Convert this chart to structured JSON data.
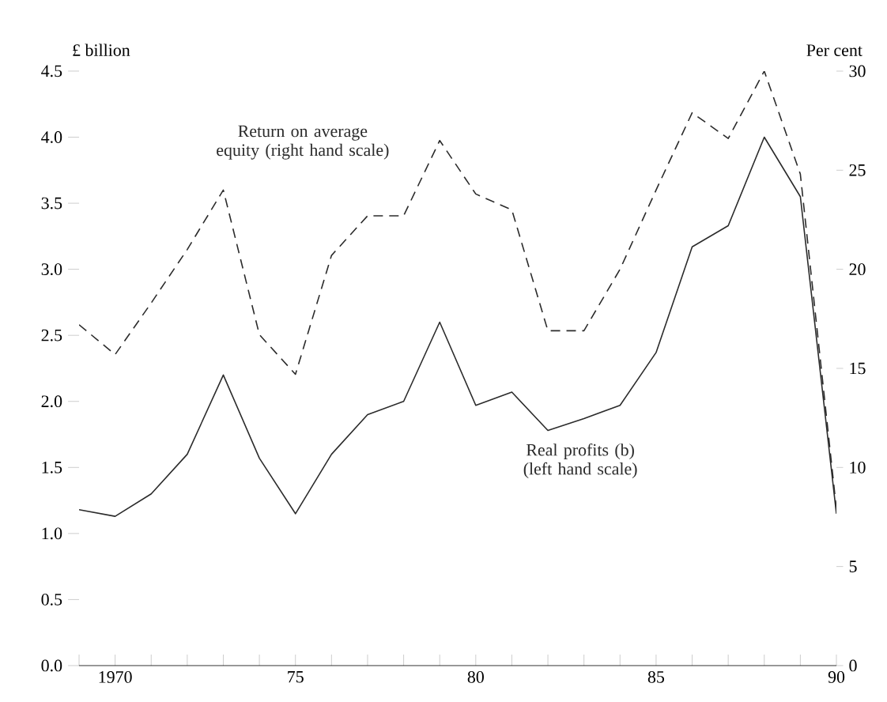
{
  "chart_data": {
    "type": "line",
    "xlabel": null,
    "ylabel": "£ billion",
    "y2label": "Per cent",
    "x": [
      1969,
      1970,
      1971,
      1972,
      1973,
      1974,
      1975,
      1976,
      1977,
      1978,
      1979,
      1980,
      1981,
      1982,
      1983,
      1984,
      1985,
      1986,
      1987,
      1988,
      1989,
      1990
    ],
    "series": [
      {
        "name": "Real profits (b) (left hand scale)",
        "color": "#2b2b2b",
        "line_style": "solid",
        "values": [
          1.18,
          1.13,
          1.3,
          1.6,
          2.2,
          1.57,
          1.15,
          1.6,
          1.9,
          2.0,
          2.6,
          1.97,
          2.07,
          1.78,
          1.87,
          1.97,
          2.37,
          3.17,
          3.33,
          4.0,
          3.55,
          1.15
        ]
      },
      {
        "name": "Return on average equity (right hand scale)",
        "color": "#2b2b2b",
        "line_style": "dashed",
        "axis": "y2",
        "values": [
          17.2,
          15.7,
          18.3,
          21.0,
          24.0,
          16.7,
          14.7,
          20.7,
          22.7,
          22.7,
          26.5,
          23.8,
          23.0,
          16.9,
          16.9,
          20.0,
          24.0,
          27.9,
          26.6,
          30.0,
          24.8,
          7.9
        ]
      }
    ],
    "xlim": [
      1969,
      1990
    ],
    "xticks": [
      {
        "value": 1969,
        "label": null
      },
      1970,
      {
        "value": 1971,
        "label": null
      },
      {
        "value": 1972,
        "label": null
      },
      {
        "value": 1973,
        "label": null
      },
      {
        "value": 1974,
        "label": null
      },
      {
        "value": 1975,
        "label": "75"
      },
      {
        "value": 1976,
        "label": null
      },
      {
        "value": 1977,
        "label": null
      },
      {
        "value": 1978,
        "label": null
      },
      {
        "value": 1979,
        "label": null
      },
      {
        "value": 1980,
        "label": "80"
      },
      {
        "value": 1981,
        "label": null
      },
      {
        "value": 1982,
        "label": null
      },
      {
        "value": 1983,
        "label": null
      },
      {
        "value": 1984,
        "label": null
      },
      {
        "value": 1985,
        "label": "85"
      },
      {
        "value": 1986,
        "label": null
      },
      {
        "value": 1987,
        "label": null
      },
      {
        "value": 1988,
        "label": null
      },
      {
        "value": 1989,
        "label": null
      },
      {
        "value": 1990,
        "label": "90"
      }
    ],
    "ylim": [
      0,
      4.5
    ],
    "yticks": [
      {
        "value": 0,
        "label": "0.0"
      },
      {
        "value": 0.5,
        "label": "0.5"
      },
      {
        "value": 1,
        "label": "1.0"
      },
      {
        "value": 1.5,
        "label": "1.5"
      },
      {
        "value": 2,
        "label": "2.0"
      },
      {
        "value": 2.5,
        "label": "2.5"
      },
      {
        "value": 3,
        "label": "3.0"
      },
      {
        "value": 3.5,
        "label": "3.5"
      },
      {
        "value": 4,
        "label": "4.0"
      },
      {
        "value": 4.5,
        "label": "4.5"
      }
    ],
    "y2lim": [
      0,
      30
    ],
    "y2ticks": [
      0,
      5,
      10,
      15,
      20,
      25,
      30
    ],
    "marker": "none"
  }
}
